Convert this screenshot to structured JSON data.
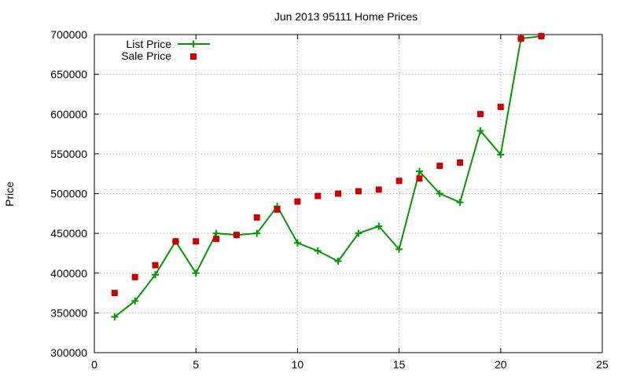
{
  "chart_data": {
    "type": "line",
    "title": "Jun 2013 95111 Home Prices",
    "xlabel": "",
    "ylabel": "Price",
    "xlim": [
      0,
      25
    ],
    "ylim": [
      300000,
      700000
    ],
    "x_ticks": [
      0,
      5,
      10,
      15,
      20,
      25
    ],
    "y_ticks": [
      300000,
      350000,
      400000,
      450000,
      500000,
      550000,
      600000,
      650000,
      700000
    ],
    "grid": true,
    "legend_position": "top-left",
    "series": [
      {
        "name": "List Price",
        "style": "line-with-plus-markers",
        "color": "#009900",
        "x": [
          1,
          2,
          3,
          4,
          5,
          6,
          7,
          8,
          9,
          10,
          11,
          12,
          13,
          14,
          15,
          16,
          17,
          18,
          19,
          20,
          21,
          22
        ],
        "y": [
          345000,
          365000,
          398000,
          440000,
          400000,
          450000,
          448000,
          450000,
          484000,
          438000,
          428000,
          415000,
          450000,
          459000,
          430000,
          528000,
          500000,
          489000,
          579000,
          549000,
          695000,
          698000
        ]
      },
      {
        "name": "Sale Price",
        "style": "square-markers",
        "color": "#cc0000",
        "x": [
          1,
          2,
          3,
          4,
          5,
          6,
          7,
          8,
          9,
          10,
          11,
          12,
          13,
          14,
          15,
          16,
          17,
          18,
          19,
          20,
          21,
          22
        ],
        "y": [
          375000,
          395000,
          410000,
          440000,
          440000,
          443000,
          448000,
          470000,
          480000,
          490000,
          497000,
          500000,
          503000,
          505000,
          516000,
          519000,
          535000,
          539000,
          600000,
          609000,
          695000,
          698000
        ]
      }
    ]
  }
}
